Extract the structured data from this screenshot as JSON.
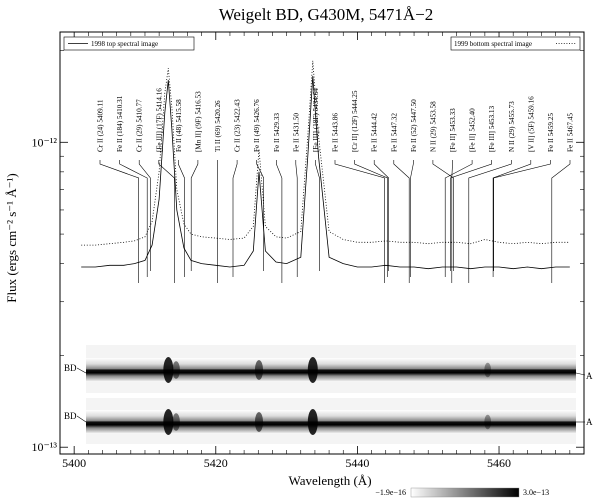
{
  "chart_data": {
    "type": "line",
    "title": "Weigelt BD, G430M, 5471Å−2",
    "xlabel": "Wavelength (Å)",
    "ylabel": "Flux (ergs cm⁻² s⁻¹ Å⁻¹)",
    "xlim": [
      5398,
      5472
    ],
    "ylim": [
      9.5e-14,
      2.3e-12
    ],
    "y_scale": "log",
    "x_ticks": [
      5400,
      5420,
      5440,
      5460
    ],
    "x_tick_labels": [
      "5400",
      "5420",
      "5440",
      "5460"
    ],
    "y_ticks": [
      1e-12,
      1e-13
    ],
    "y_tick_labels": [
      "10⁻¹²",
      "10⁻¹³"
    ],
    "legend": {
      "placement": "top"
    },
    "series": [
      {
        "name": "1998 top spectral image",
        "style": "solid",
        "x": [
          5401,
          5403,
          5405,
          5407,
          5408.5,
          5410,
          5411,
          5412,
          5412.8,
          5413.3,
          5413.8,
          5414.5,
          5415.5,
          5416.5,
          5418,
          5420,
          5422,
          5424,
          5425.3,
          5426.1,
          5427,
          5428.5,
          5430,
          5432,
          5433,
          5433.7,
          5434.5,
          5436,
          5438,
          5440,
          5442,
          5444,
          5446,
          5448,
          5450,
          5452,
          5454,
          5456,
          5458,
          5460,
          5462,
          5464,
          5466,
          5468,
          5470
        ],
        "y": [
          3.9e-13,
          3.9e-13,
          3.95e-13,
          3.95e-13,
          4e-13,
          4.1e-13,
          4.6e-13,
          6.5e-13,
          1.25e-12,
          1.6e-12,
          1.1e-12,
          6e-13,
          4.5e-13,
          4.1e-13,
          4e-13,
          3.95e-13,
          3.9e-13,
          3.95e-13,
          4.4e-13,
          8e-13,
          4.4e-13,
          4.05e-13,
          4e-13,
          4.2e-13,
          9e-13,
          1.65e-12,
          9e-13,
          4.2e-13,
          4e-13,
          3.9e-13,
          3.9e-13,
          3.95e-13,
          3.9e-13,
          3.9e-13,
          3.85e-13,
          3.9e-13,
          3.9e-13,
          3.85e-13,
          3.9e-13,
          3.9e-13,
          3.85e-13,
          3.9e-13,
          3.85e-13,
          3.9e-13,
          3.9e-13
        ]
      },
      {
        "name": "1999 bottom spectral image",
        "style": "dotted",
        "x": [
          5401,
          5403,
          5405,
          5407,
          5408.5,
          5410,
          5411,
          5412,
          5412.8,
          5413.3,
          5413.8,
          5414.5,
          5415.5,
          5416.5,
          5418,
          5420,
          5422,
          5424,
          5425.3,
          5426.1,
          5427,
          5428.5,
          5430,
          5432,
          5433,
          5433.7,
          5434.5,
          5436,
          5438,
          5440,
          5442,
          5444,
          5446,
          5448,
          5450,
          5452,
          5454,
          5456,
          5458,
          5460,
          5462,
          5464,
          5466,
          5468,
          5470
        ],
        "y": [
          4.6e-13,
          4.6e-13,
          4.65e-13,
          4.7e-13,
          4.75e-13,
          4.9e-13,
          5.5e-13,
          8e-13,
          1.45e-12,
          1.75e-12,
          1.3e-12,
          7e-13,
          5.4e-13,
          5e-13,
          4.9e-13,
          4.85e-13,
          4.8e-13,
          4.85e-13,
          5.3e-13,
          9.5e-13,
          5.3e-13,
          4.9e-13,
          4.85e-13,
          5.1e-13,
          1.05e-12,
          1.85e-12,
          1.05e-12,
          5.1e-13,
          4.8e-13,
          4.7e-13,
          4.7e-13,
          4.75e-13,
          4.7e-13,
          4.7e-13,
          4.65e-13,
          4.7e-13,
          4.7e-13,
          4.65e-13,
          4.8e-13,
          4.7e-13,
          4.65e-13,
          4.7e-13,
          4.65e-13,
          4.7e-13,
          4.7e-13
        ]
      }
    ],
    "line_ids": [
      {
        "label": "Cr II  (24) 5409.11",
        "wavelength": 5409.11
      },
      {
        "label": "Fe II  (184) 5410.31",
        "wavelength": 5410.31
      },
      {
        "label": "Cr II  (29) 5410.77",
        "wavelength": 5410.77
      },
      {
        "label": "[Fe III]  (17F) 5414.16",
        "wavelength": 5414.16
      },
      {
        "label": "Fe II  (48) 5415.58",
        "wavelength": 5415.58
      },
      {
        "label": "[Mn II]  (9F) 5416.53",
        "wavelength": 5416.53
      },
      {
        "label": "Ti II  (69) 5420.26",
        "wavelength": 5420.26
      },
      {
        "label": "Cr II  (23) 5422.43",
        "wavelength": 5422.43
      },
      {
        "label": "Fe II  (49) 5426.76",
        "wavelength": 5426.76
      },
      {
        "label": "Fe II  5429.33",
        "wavelength": 5429.33
      },
      {
        "label": "Fe II  5431.50",
        "wavelength": 5431.5
      },
      {
        "label": "[Fe III]  (18F) 5434.64",
        "wavelength": 5434.64
      },
      {
        "label": "Fe II  5443.86",
        "wavelength": 5443.86
      },
      {
        "label": "[Cr II]  (12F) 5444.25",
        "wavelength": 5444.25
      },
      {
        "label": "Fe II  5444.42",
        "wavelength": 5444.42
      },
      {
        "label": "Fe II  5447.32",
        "wavelength": 5447.32
      },
      {
        "label": "Fe II  (52) 5447.50",
        "wavelength": 5447.5
      },
      {
        "label": "N II  (29) 5453.58",
        "wavelength": 5453.58
      },
      {
        "label": "[Fe II]  5453.33",
        "wavelength": 5453.33
      },
      {
        "label": "[Fe II]  5452.40",
        "wavelength": 5452.4
      },
      {
        "label": "[Fe III]  5453.13",
        "wavelength": 5453.13
      },
      {
        "label": "N II  (29) 5455.73",
        "wavelength": 5455.73
      },
      {
        "label": "[V II]  (5F) 5459.16",
        "wavelength": 5459.16
      },
      {
        "label": "Fe II  5459.25",
        "wavelength": 5459.25
      },
      {
        "label": "Fe II  5467.45",
        "wavelength": 5467.45
      }
    ],
    "spectral_images": [
      {
        "left_label": "BD",
        "right_label": "A"
      },
      {
        "left_label": "BD",
        "right_label": "A"
      }
    ],
    "colorbar": {
      "min_label": "−1.9e−16",
      "max_label": "3.0e−13"
    }
  }
}
